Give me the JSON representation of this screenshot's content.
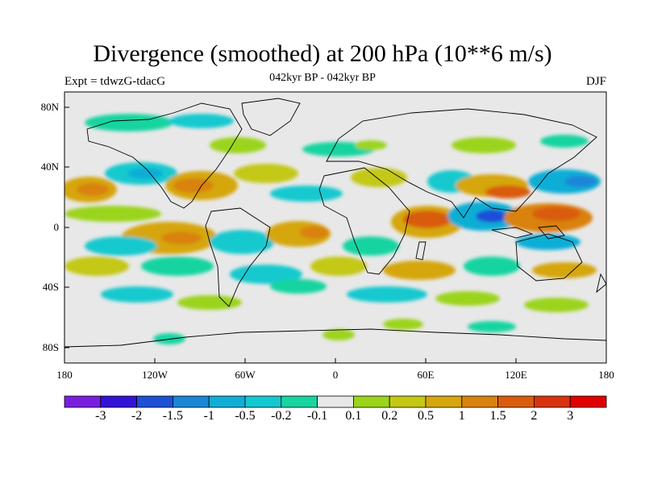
{
  "title": "Divergence (smoothed) at 200 hPa (10**6 m/s)",
  "subtitle": "042kyr BP - 042kyr BP",
  "left_label": "Expt = tdwzG-tdacG",
  "right_label": "DJF",
  "map": {
    "projection": "cylindrical-equidistant",
    "lon_range": [
      -180,
      180
    ],
    "lat_range": [
      -90,
      90
    ],
    "background_color": "#e8e8e8",
    "coastline_color": "#000000",
    "x_ticks": [
      "180",
      "120W",
      "60W",
      "0",
      "60E",
      "120E",
      "180"
    ],
    "y_ticks": [
      "80N",
      "40N",
      "0",
      "40S",
      "80S"
    ]
  },
  "colorbar": {
    "colors": [
      "#7a1fe0",
      "#3313d6",
      "#1f4fd6",
      "#1b86d6",
      "#10aed6",
      "#12c9cf",
      "#17d4a0",
      "#e8e8e8",
      "#9bd41a",
      "#c4c812",
      "#d6a60f",
      "#d9820e",
      "#d95c0c",
      "#d8330e",
      "#e00000"
    ],
    "labels": [
      "-3",
      "-2",
      "-1.5",
      "-1",
      "-0.5",
      "-0.2",
      "-0.1",
      "0.1",
      "0.2",
      "0.5",
      "1",
      "1.5",
      "2",
      "3"
    ]
  }
}
